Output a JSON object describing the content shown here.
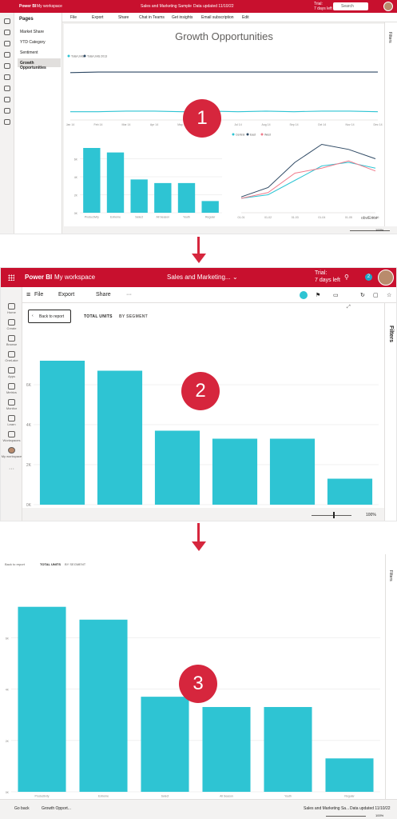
{
  "steps": [
    "1",
    "2",
    "3"
  ],
  "colors": {
    "brand": "#c8102e",
    "accent": "#d6263d",
    "bar": "#2ec4d3",
    "line_dark": "#2d4863",
    "line_pink": "#f07b8b"
  },
  "panel1": {
    "brand": "Power BI",
    "workspace": "My workspace",
    "report": "Sales and Marketing Sample",
    "data_updated": "Data updated 11/10/22",
    "trial": "Trial:",
    "days_left": "7 days left",
    "search_placeholder": "Search",
    "pages_title": "Pages",
    "pages": [
      "Market Share",
      "YTD Category",
      "Sentiment",
      "Growth Opportunities"
    ],
    "toolbar": [
      "File",
      "Export",
      "Share",
      "Chat in Teams",
      "Get insights",
      "Email subscription",
      "Edit"
    ],
    "filters_label": "Filters",
    "report_title": "Growth Opportunities",
    "zoom": "100%",
    "footer_logo": "obviEnce"
  },
  "panel2": {
    "brand": "Power BI",
    "workspace": "My workspace",
    "report": "Sales and Marketing...",
    "trial": "Trial:",
    "days_left": "7 days left",
    "notif_count": "2",
    "nav": [
      "Home",
      "Create",
      "Browse",
      "OneLake",
      "Apps",
      "Metrics",
      "Monitor",
      "Learn",
      "Workspaces",
      "My workspace"
    ],
    "toolbar": {
      "file": "File",
      "export": "Export",
      "share": "Share"
    },
    "back_label": "Back to report",
    "tabs": [
      "TOTAL UNITS",
      "BY SEGMENT"
    ],
    "filters_label": "Filters",
    "zoom": "100%"
  },
  "panel3": {
    "back_label": "Back to report",
    "tabs": [
      "TOTAL UNITS",
      "BY SEGMENT"
    ],
    "filters_label": "Filters",
    "go_back": "Go back",
    "page_tab": "Growth Opport...",
    "report": "Sales and Marketing Sa...",
    "data_updated": "Data updated 11/10/22",
    "zoom": "100%"
  },
  "chart_data": [
    {
      "type": "bar",
      "categories": [
        "Productivity",
        "Extreme",
        "Select",
        "All Season",
        "Youth",
        "Regular"
      ],
      "values": [
        72,
        67,
        37,
        33,
        33,
        13
      ],
      "yticks": [
        "0K",
        "2K",
        "4K",
        "6K"
      ],
      "ylim": [
        0,
        80
      ]
    },
    {
      "type": "line",
      "x": [
        "Jan 14",
        "Feb 14",
        "Mar 14",
        "Apr 14",
        "May 14",
        "Jun 14",
        "Jul 14",
        "Aug 14",
        "Sep 14",
        "Oct 14",
        "Nov 14",
        "Dec 14"
      ],
      "series": [
        {
          "name": "Total Units",
          "values": [
            14,
            14,
            15,
            15,
            14,
            15,
            14,
            15,
            14,
            15,
            15,
            14
          ]
        },
        {
          "name": "Total Units 2013",
          "values": [
            80,
            81,
            81,
            81,
            81,
            81,
            81,
            81,
            81,
            81,
            81,
            81
          ]
        }
      ],
      "ylim": [
        0,
        100
      ]
    },
    {
      "type": "line",
      "x": [
        "01-01",
        "01-02",
        "01-03",
        "01-04",
        "01-05",
        "01-06"
      ],
      "series": [
        {
          "name": "Central",
          "values": [
            20,
            25,
            45,
            65,
            70,
            62
          ]
        },
        {
          "name": "East",
          "values": [
            22,
            35,
            70,
            95,
            88,
            75
          ]
        },
        {
          "name": "West",
          "values": [
            20,
            28,
            55,
            62,
            72,
            58
          ]
        }
      ],
      "ylim": [
        0,
        100
      ]
    }
  ]
}
